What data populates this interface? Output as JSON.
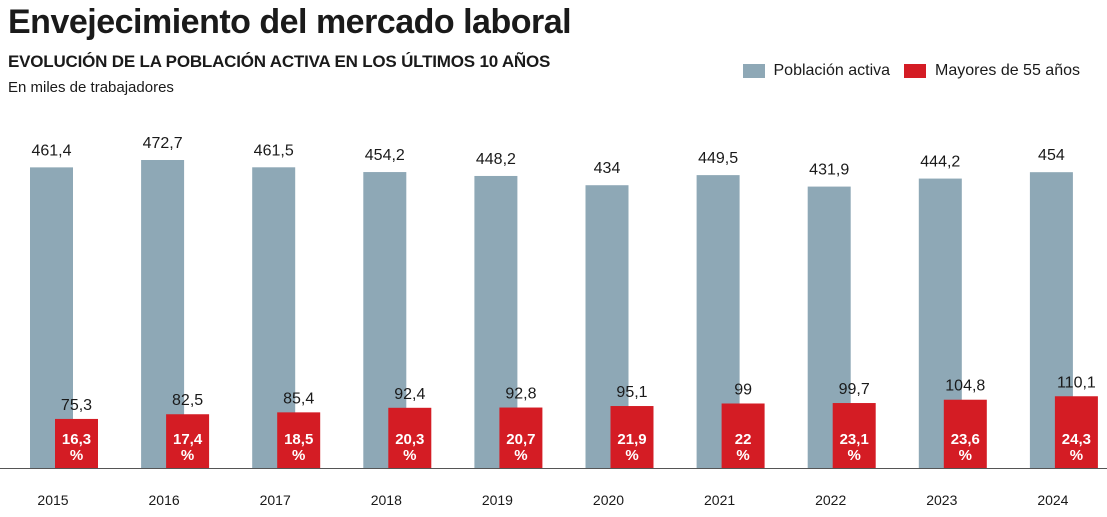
{
  "header": {
    "title": "Envejecimiento del mercado laboral",
    "subtitle": "EVOLUCIÓN DE LA POBLACIÓN ACTIVA EN LOS ÚLTIMOS 10 AÑOS",
    "units": "En miles de trabajadores"
  },
  "colors": {
    "activa": "#8ea8b6",
    "mayores": "#d41c24",
    "text": "#1a1a1a"
  },
  "chart_data": {
    "type": "bar",
    "title": "Envejecimiento del mercado laboral",
    "xlabel": "",
    "ylabel": "En miles de trabajadores",
    "ylim": [
      0,
      480
    ],
    "legend_position": "top-right",
    "categories": [
      "2015",
      "2016",
      "2017",
      "2018",
      "2019",
      "2020",
      "2021",
      "2022",
      "2023",
      "2024"
    ],
    "series": [
      {
        "name": "Población activa",
        "values": [
          461.4,
          472.7,
          461.5,
          454.2,
          448.2,
          434,
          449.5,
          431.9,
          444.2,
          454
        ],
        "labels": [
          "461,4",
          "472,7",
          "461,5",
          "454,2",
          "448,2",
          "434",
          "449,5",
          "431,9",
          "444,2",
          "454"
        ]
      },
      {
        "name": "Mayores de 55 años",
        "values": [
          75.3,
          82.5,
          85.4,
          92.4,
          92.8,
          95.1,
          99,
          99.7,
          104.8,
          110.1
        ],
        "labels": [
          "75,3",
          "82,5",
          "85,4",
          "92,4",
          "92,8",
          "95,1",
          "99",
          "99,7",
          "104,8",
          "110,1"
        ],
        "percent_labels": [
          "16,3",
          "17,4",
          "18,5",
          "20,3",
          "20,7",
          "21,9",
          "22",
          "23,1",
          "23,6",
          "24,3"
        ],
        "percent_sign": "%"
      }
    ]
  }
}
